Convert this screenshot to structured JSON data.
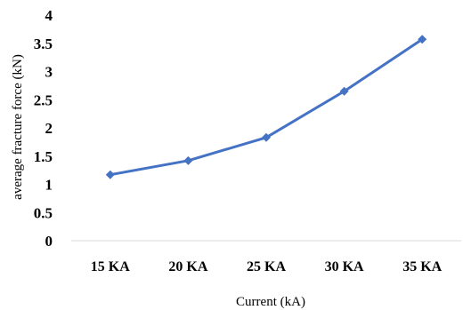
{
  "chart_data": {
    "type": "line",
    "categories": [
      "15 KA",
      "20 KA",
      "25 KA",
      "30 KA",
      "35 KA"
    ],
    "series": [
      {
        "values": [
          1.17,
          1.42,
          1.83,
          2.65,
          3.57
        ]
      }
    ],
    "xlabel": "Current (kA)",
    "ylabel": "average fracture force (kN)",
    "ylim": [
      0,
      4
    ],
    "yticks": [
      "0",
      "0.5",
      "1",
      "1.5",
      "2",
      "2.5",
      "3",
      "3.5",
      "4"
    ],
    "grid": false,
    "legend": "none",
    "colors": {
      "series": "#4472C4",
      "axis": "#d9d9d9",
      "text": "#000000"
    }
  }
}
